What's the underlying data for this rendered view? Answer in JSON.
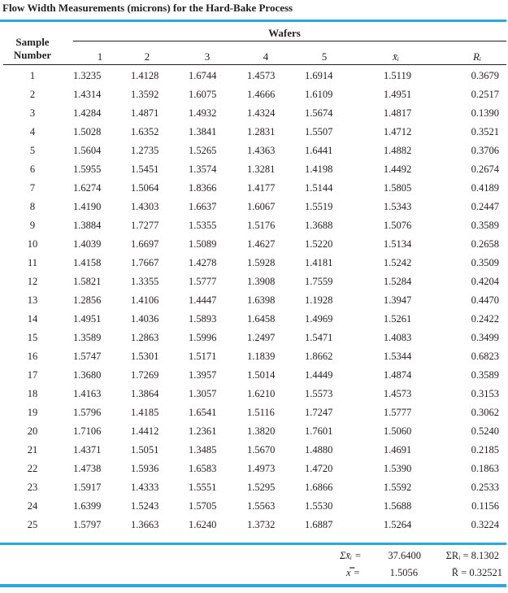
{
  "title": "Flow Width Measurements (microns) for the Hard-Bake Process",
  "header": {
    "sample_label_line1": "Sample",
    "sample_label_line2": "Number",
    "wafers_label": "Wafers",
    "wafer_columns": [
      "1",
      "2",
      "3",
      "4",
      "5"
    ],
    "xbar_label": "x̄ᵢ",
    "r_label": "Rᵢ"
  },
  "rows": [
    {
      "n": "1",
      "w": [
        "1.3235",
        "1.4128",
        "1.6744",
        "1.4573",
        "1.6914"
      ],
      "xbar": "1.5119",
      "r": "0.3679"
    },
    {
      "n": "2",
      "w": [
        "1.4314",
        "1.3592",
        "1.6075",
        "1.4666",
        "1.6109"
      ],
      "xbar": "1.4951",
      "r": "0.2517"
    },
    {
      "n": "3",
      "w": [
        "1.4284",
        "1.4871",
        "1.4932",
        "1.4324",
        "1.5674"
      ],
      "xbar": "1.4817",
      "r": "0.1390"
    },
    {
      "n": "4",
      "w": [
        "1.5028",
        "1.6352",
        "1.3841",
        "1.2831",
        "1.5507"
      ],
      "xbar": "1.4712",
      "r": "0.3521"
    },
    {
      "n": "5",
      "w": [
        "1.5604",
        "1.2735",
        "1.5265",
        "1.4363",
        "1.6441"
      ],
      "xbar": "1.4882",
      "r": "0.3706"
    },
    {
      "n": "6",
      "w": [
        "1.5955",
        "1.5451",
        "1.3574",
        "1.3281",
        "1.4198"
      ],
      "xbar": "1.4492",
      "r": "0.2674"
    },
    {
      "n": "7",
      "w": [
        "1.6274",
        "1.5064",
        "1.8366",
        "1.4177",
        "1.5144"
      ],
      "xbar": "1.5805",
      "r": "0.4189"
    },
    {
      "n": "8",
      "w": [
        "1.4190",
        "1.4303",
        "1.6637",
        "1.6067",
        "1.5519"
      ],
      "xbar": "1.5343",
      "r": "0.2447"
    },
    {
      "n": "9",
      "w": [
        "1.3884",
        "1.7277",
        "1.5355",
        "1.5176",
        "1.3688"
      ],
      "xbar": "1.5076",
      "r": "0.3589"
    },
    {
      "n": "10",
      "w": [
        "1.4039",
        "1.6697",
        "1.5089",
        "1.4627",
        "1.5220"
      ],
      "xbar": "1.5134",
      "r": "0.2658"
    },
    {
      "n": "11",
      "w": [
        "1.4158",
        "1.7667",
        "1.4278",
        "1.5928",
        "1.4181"
      ],
      "xbar": "1.5242",
      "r": "0.3509"
    },
    {
      "n": "12",
      "w": [
        "1.5821",
        "1.3355",
        "1.5777",
        "1.3908",
        "1.7559"
      ],
      "xbar": "1.5284",
      "r": "0.4204"
    },
    {
      "n": "13",
      "w": [
        "1.2856",
        "1.4106",
        "1.4447",
        "1.6398",
        "1.1928"
      ],
      "xbar": "1.3947",
      "r": "0.4470"
    },
    {
      "n": "14",
      "w": [
        "1.4951",
        "1.4036",
        "1.5893",
        "1.6458",
        "1.4969"
      ],
      "xbar": "1.5261",
      "r": "0.2422"
    },
    {
      "n": "15",
      "w": [
        "1.3589",
        "1.2863",
        "1.5996",
        "1.2497",
        "1.5471"
      ],
      "xbar": "1.4083",
      "r": "0.3499"
    },
    {
      "n": "16",
      "w": [
        "1.5747",
        "1.5301",
        "1.5171",
        "1.1839",
        "1.8662"
      ],
      "xbar": "1.5344",
      "r": "0.6823"
    },
    {
      "n": "17",
      "w": [
        "1.3680",
        "1.7269",
        "1.3957",
        "1.5014",
        "1.4449"
      ],
      "xbar": "1.4874",
      "r": "0.3589"
    },
    {
      "n": "18",
      "w": [
        "1.4163",
        "1.3864",
        "1.3057",
        "1.6210",
        "1.5573"
      ],
      "xbar": "1.4573",
      "r": "0.3153"
    },
    {
      "n": "19",
      "w": [
        "1.5796",
        "1.4185",
        "1.6541",
        "1.5116",
        "1.7247"
      ],
      "xbar": "1.5777",
      "r": "0.3062"
    },
    {
      "n": "20",
      "w": [
        "1.7106",
        "1.4412",
        "1.2361",
        "1.3820",
        "1.7601"
      ],
      "xbar": "1.5060",
      "r": "0.5240"
    },
    {
      "n": "21",
      "w": [
        "1.4371",
        "1.5051",
        "1.3485",
        "1.5670",
        "1.4880"
      ],
      "xbar": "1.4691",
      "r": "0.2185"
    },
    {
      "n": "22",
      "w": [
        "1.4738",
        "1.5936",
        "1.6583",
        "1.4973",
        "1.4720"
      ],
      "xbar": "1.5390",
      "r": "0.1863"
    },
    {
      "n": "23",
      "w": [
        "1.5917",
        "1.4333",
        "1.5551",
        "1.5295",
        "1.6866"
      ],
      "xbar": "1.5592",
      "r": "0.2533"
    },
    {
      "n": "24",
      "w": [
        "1.6399",
        "1.5243",
        "1.5705",
        "1.5563",
        "1.5530"
      ],
      "xbar": "1.5688",
      "r": "0.1156"
    },
    {
      "n": "25",
      "w": [
        "1.5797",
        "1.3663",
        "1.6240",
        "1.3732",
        "1.6887"
      ],
      "xbar": "1.5264",
      "r": "0.3224"
    }
  ],
  "summary": {
    "sum_xbar_label": "Σx̄ᵢ =",
    "sum_xbar_value": "37.6400",
    "sum_r": "ΣRᵢ = 8.1302",
    "grand_mean_label": "x̿ =",
    "grand_mean_value": "1.5056",
    "rbar": "R̄ = 0.32521"
  },
  "colors": {
    "accent_rule": "#29a8e0",
    "text": "#231f20"
  }
}
